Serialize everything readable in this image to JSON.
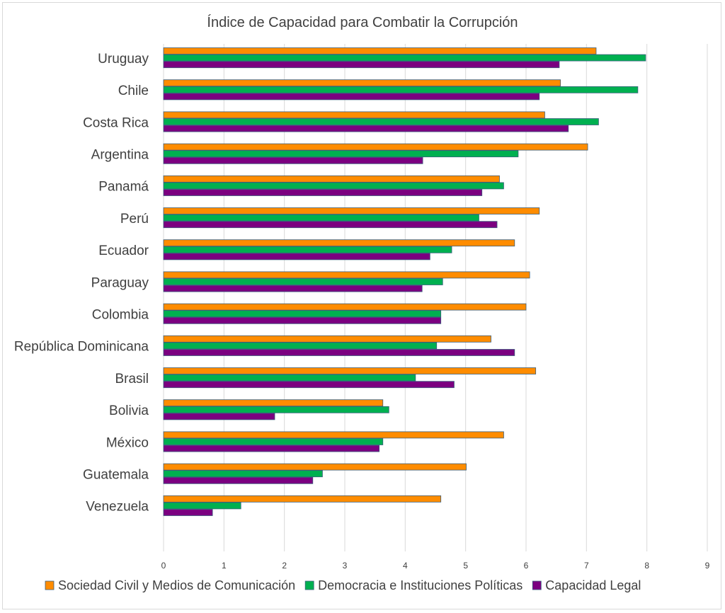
{
  "chart_data": {
    "type": "bar",
    "orientation": "horizontal",
    "title": "Índice de Capacidad para Combatir la Corrupción",
    "xlabel": "",
    "ylabel": "",
    "xlim": [
      0,
      9
    ],
    "x_ticks": [
      "0",
      "1",
      "2",
      "3",
      "4",
      "5",
      "6",
      "7",
      "8",
      "9"
    ],
    "grid": "vertical",
    "legend_position": "bottom",
    "categories": [
      "Uruguay",
      "Chile",
      "Costa Rica",
      "Argentina",
      "Panamá",
      "Perú",
      "Ecuador",
      "Paraguay",
      "Colombia",
      "República Dominicana",
      "Brasil",
      "Bolivia",
      "México",
      "Guatemala",
      "Venezuela"
    ],
    "series": [
      {
        "name": "Sociedad Civil y Medios de Comunicación",
        "color": "#ff8c00",
        "values": [
          7.16,
          6.57,
          6.31,
          7.02,
          5.56,
          6.22,
          5.81,
          6.06,
          6.0,
          5.42,
          6.16,
          3.63,
          5.63,
          5.01,
          4.59
        ]
      },
      {
        "name": "Democracia e Instituciones Políticas",
        "color": "#00b050",
        "values": [
          7.98,
          7.85,
          7.2,
          5.87,
          5.63,
          5.22,
          4.77,
          4.62,
          4.59,
          4.52,
          4.17,
          3.73,
          3.63,
          2.63,
          1.28
        ]
      },
      {
        "name": "Capacidad Legal",
        "color": "#7b0080",
        "values": [
          6.55,
          6.22,
          6.7,
          4.29,
          5.27,
          5.52,
          4.41,
          4.28,
          4.59,
          5.81,
          4.81,
          1.84,
          3.57,
          2.47,
          0.81
        ]
      }
    ]
  }
}
